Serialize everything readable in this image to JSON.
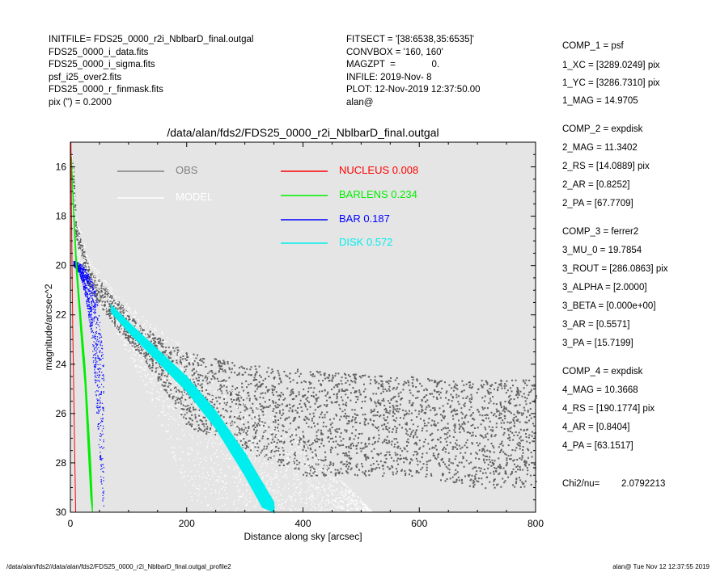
{
  "header_left": [
    "INITFILE= FDS25_0000_r2i_NblbarD_final.outgal",
    "FDS25_0000_i_data.fits",
    "FDS25_0000_i_sigma.fits",
    "psf_i25_over2.fits",
    "FDS25_0000_r_finmask.fits",
    "pix (\") =  0.2000"
  ],
  "header_mid": [
    "FITSECT = '[38:6538,35:6535]'",
    "CONVBOX = '160, 160'",
    "MAGZPT  =              0.",
    "INFILE: 2019-Nov- 8",
    "PLOT: 12-Nov-2019 12:37:50.00",
    "alan@"
  ],
  "components": [
    {
      "lines": [
        "COMP_1  = psf",
        "1_XC    = [3289.0249] pix",
        "1_YC    = [3286.7310] pix",
        "1_MAG   = 14.9705"
      ]
    },
    {
      "lines": [
        "COMP_2  = expdisk",
        "2_MAG   = 11.3402",
        "2_RS    = [14.0889] pix",
        "2_AR    = [0.8252]",
        "2_PA    = [67.7709]"
      ]
    },
    {
      "lines": [
        "COMP_3  = ferrer2",
        "3_MU_0  = 19.7854",
        "3_ROUT  = [286.0863] pix",
        "3_ALPHA = [2.0000]",
        "3_BETA  = [0.000e+00]",
        "3_AR    = [0.5571]",
        "3_PA    = [15.7199]"
      ]
    },
    {
      "lines": [
        "COMP_4  = expdisk",
        "4_MAG   = 10.3668",
        "4_RS    = [190.1774] pix",
        "4_AR    = [0.8404]",
        "4_PA    = [63.1517]"
      ]
    }
  ],
  "chi2": {
    "label": "Chi2/nu=",
    "value": "2.0792213"
  },
  "footer": {
    "left": "/data/alan/fds2//data/alan/fds2/FDS25_0000_r2i_NblbarD_final.outgal_profile2",
    "right": "alan@  Tue Nov 12 12:37:55 2019"
  },
  "chart_data": {
    "type": "scatter",
    "title": "/data/alan/fds2/FDS25_0000_r2i_NblbarD_final.outgal",
    "xlabel": "Distance along sky [arcsec]",
    "ylabel": "magnitude/arcsec^2",
    "xlim": [
      0,
      800
    ],
    "ylim": [
      30,
      15
    ],
    "y_inverted": true,
    "x_ticks": [
      0,
      200,
      400,
      600,
      800
    ],
    "y_ticks": [
      16,
      18,
      20,
      22,
      24,
      26,
      28,
      30
    ],
    "background": "#e5e5e5",
    "legend": [
      {
        "name": "OBS",
        "value": "",
        "color": "#808080"
      },
      {
        "name": "MODEL",
        "value": "",
        "color": "#ffffff"
      },
      {
        "name": "NUCLEUS",
        "value": "0.008",
        "color": "#ff0000"
      },
      {
        "name": "BARLENS",
        "value": "0.234",
        "color": "#00ee00"
      },
      {
        "name": "BAR",
        "value": "0.187",
        "color": "#0000ff"
      },
      {
        "name": "DISK",
        "value": "0.572",
        "color": "#00eeee"
      }
    ],
    "series": [
      {
        "name": "OBS",
        "color": "#606060",
        "style": "points",
        "envelope": [
          [
            2,
            15.5,
            15.6
          ],
          [
            10,
            18.3,
            19.2
          ],
          [
            30,
            20.0,
            20.8
          ],
          [
            50,
            20.6,
            21.6
          ],
          [
            80,
            21.4,
            22.6
          ],
          [
            120,
            22.4,
            23.6
          ],
          [
            160,
            23.0,
            25.0
          ],
          [
            200,
            23.5,
            26.5
          ],
          [
            300,
            24.0,
            27.5
          ],
          [
            400,
            24.2,
            28.5
          ],
          [
            500,
            24.4,
            28.5
          ],
          [
            600,
            24.5,
            28.5
          ],
          [
            700,
            24.6,
            29.0
          ],
          [
            800,
            24.6,
            29.0
          ]
        ]
      },
      {
        "name": "MODEL",
        "color": "#ffffff",
        "style": "points",
        "envelope": [
          [
            2,
            15.4,
            15.5
          ],
          [
            10,
            18.0,
            19.5
          ],
          [
            30,
            19.6,
            21.0
          ],
          [
            60,
            20.6,
            22.0
          ],
          [
            100,
            21.6,
            23.6
          ],
          [
            150,
            22.5,
            26.0
          ],
          [
            200,
            23.4,
            29.5
          ],
          [
            260,
            24.5,
            30
          ],
          [
            320,
            25.6,
            30
          ],
          [
            400,
            27.0,
            30
          ],
          [
            460,
            28.5,
            30
          ],
          [
            520,
            30,
            30
          ]
        ]
      },
      {
        "name": "NUCLEUS",
        "color": "#ff0000",
        "style": "line",
        "points": [
          [
            1,
            15.0
          ],
          [
            2,
            18.0
          ],
          [
            3,
            20.5
          ],
          [
            4,
            22.5
          ],
          [
            5,
            24.0
          ],
          [
            6,
            25.5
          ],
          [
            7,
            27.0
          ],
          [
            8,
            28.5
          ],
          [
            9,
            30.0
          ]
        ]
      },
      {
        "name": "BARLENS",
        "color": "#00ee00",
        "style": "band",
        "envelope": [
          [
            2,
            15.6,
            15.8
          ],
          [
            5,
            17.3,
            17.7
          ],
          [
            10,
            19.6,
            20.2
          ],
          [
            15,
            21.2,
            21.8
          ],
          [
            20,
            22.6,
            23.4
          ],
          [
            25,
            24.0,
            24.8
          ],
          [
            30,
            26.0,
            27.2
          ],
          [
            35,
            28.0,
            29.4
          ],
          [
            38,
            29.6,
            30.0
          ]
        ]
      },
      {
        "name": "BAR",
        "color": "#0000ff",
        "style": "points",
        "envelope": [
          [
            5,
            19.8,
            20.0
          ],
          [
            15,
            19.9,
            20.3
          ],
          [
            25,
            20.1,
            21.2
          ],
          [
            35,
            20.5,
            22.8
          ],
          [
            45,
            21.2,
            26.0
          ],
          [
            52,
            22.5,
            29.0
          ],
          [
            57,
            24.0,
            30.0
          ]
        ]
      },
      {
        "name": "DISK",
        "color": "#00eeee",
        "style": "band",
        "envelope": [
          [
            70,
            21.6,
            21.9
          ],
          [
            100,
            22.3,
            22.7
          ],
          [
            150,
            23.4,
            23.9
          ],
          [
            200,
            24.5,
            25.1
          ],
          [
            250,
            25.9,
            26.6
          ],
          [
            300,
            27.6,
            28.5
          ],
          [
            330,
            28.8,
            29.8
          ],
          [
            350,
            29.6,
            30.0
          ]
        ]
      }
    ]
  }
}
